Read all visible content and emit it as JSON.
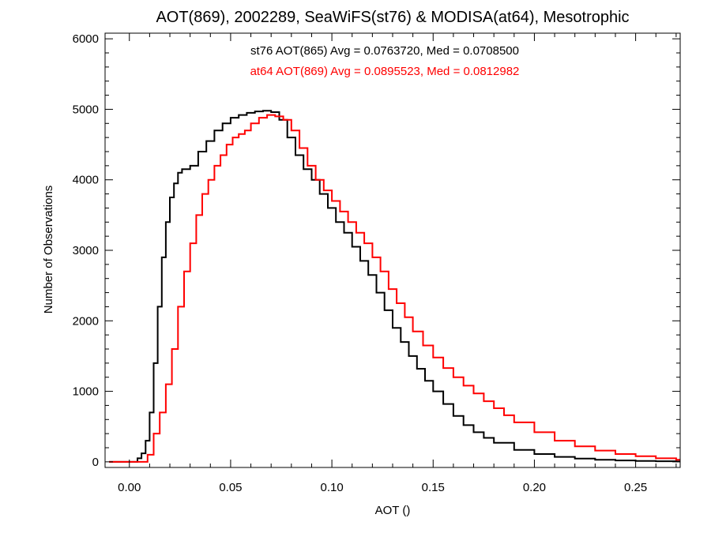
{
  "chart_data": {
    "type": "line",
    "title": "AOT(869), 2002289, SeaWiFS(st76) & MODISA(at64), Mesotrophic",
    "xlabel": "AOT ()",
    "ylabel": "Number of Observations",
    "xlim": [
      -0.012,
      0.272
    ],
    "ylim": [
      -80,
      6080
    ],
    "xticks": [
      "0.00",
      "0.05",
      "0.10",
      "0.15",
      "0.20",
      "0.25"
    ],
    "yticks": [
      "0",
      "1000",
      "2000",
      "3000",
      "4000",
      "5000",
      "6000"
    ],
    "xtick_values": [
      0.0,
      0.05,
      0.1,
      0.15,
      0.2,
      0.25
    ],
    "ytick_values": [
      0,
      1000,
      2000,
      3000,
      4000,
      5000,
      6000
    ],
    "grid": false,
    "step": true,
    "annotations": [
      {
        "text": "st76 AOT(865) Avg = 0.0763720, Med = 0.0708500",
        "color": "#000000"
      },
      {
        "text": "at64 AOT(869) Avg = 0.0895523, Med = 0.0812982",
        "color": "#ff0000"
      }
    ],
    "series": [
      {
        "color": "#000000",
        "x": [
          -0.01,
          0.0,
          0.004,
          0.006,
          0.008,
          0.01,
          0.012,
          0.014,
          0.016,
          0.018,
          0.02,
          0.022,
          0.024,
          0.026,
          0.03,
          0.034,
          0.038,
          0.042,
          0.046,
          0.05,
          0.054,
          0.058,
          0.062,
          0.066,
          0.07,
          0.074,
          0.078,
          0.082,
          0.086,
          0.09,
          0.094,
          0.098,
          0.102,
          0.106,
          0.11,
          0.114,
          0.118,
          0.122,
          0.126,
          0.13,
          0.134,
          0.138,
          0.142,
          0.146,
          0.15,
          0.155,
          0.16,
          0.165,
          0.17,
          0.175,
          0.18,
          0.19,
          0.2,
          0.21,
          0.22,
          0.23,
          0.24,
          0.25,
          0.26,
          0.27
        ],
        "y": [
          0,
          0,
          50,
          120,
          300,
          700,
          1400,
          2200,
          2900,
          3400,
          3750,
          3950,
          4100,
          4150,
          4200,
          4400,
          4550,
          4700,
          4800,
          4880,
          4920,
          4950,
          4970,
          4980,
          4960,
          4850,
          4600,
          4350,
          4150,
          4000,
          3800,
          3600,
          3400,
          3250,
          3050,
          2850,
          2650,
          2400,
          2150,
          1900,
          1700,
          1500,
          1320,
          1150,
          1000,
          820,
          650,
          520,
          420,
          340,
          270,
          170,
          110,
          70,
          45,
          30,
          20,
          12,
          8,
          5
        ]
      },
      {
        "color": "#ff0000",
        "x": [
          -0.01,
          0.005,
          0.009,
          0.012,
          0.015,
          0.018,
          0.021,
          0.024,
          0.027,
          0.03,
          0.033,
          0.036,
          0.039,
          0.042,
          0.045,
          0.048,
          0.051,
          0.054,
          0.057,
          0.06,
          0.064,
          0.068,
          0.072,
          0.076,
          0.08,
          0.084,
          0.088,
          0.092,
          0.096,
          0.1,
          0.104,
          0.108,
          0.112,
          0.116,
          0.12,
          0.124,
          0.128,
          0.132,
          0.136,
          0.14,
          0.145,
          0.15,
          0.155,
          0.16,
          0.165,
          0.17,
          0.175,
          0.18,
          0.185,
          0.19,
          0.2,
          0.21,
          0.22,
          0.23,
          0.24,
          0.25,
          0.26,
          0.27
        ],
        "y": [
          0,
          0,
          100,
          400,
          700,
          1100,
          1600,
          2200,
          2700,
          3100,
          3500,
          3800,
          4000,
          4200,
          4350,
          4500,
          4600,
          4650,
          4700,
          4800,
          4880,
          4920,
          4900,
          4850,
          4700,
          4450,
          4200,
          4000,
          3850,
          3700,
          3550,
          3400,
          3250,
          3100,
          2900,
          2700,
          2450,
          2250,
          2050,
          1850,
          1650,
          1480,
          1330,
          1200,
          1080,
          970,
          860,
          760,
          660,
          560,
          420,
          300,
          220,
          160,
          110,
          80,
          50,
          30
        ]
      }
    ]
  }
}
